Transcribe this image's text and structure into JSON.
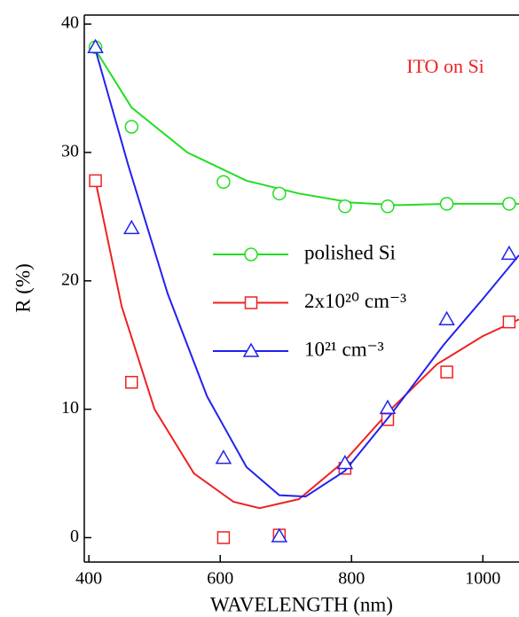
{
  "chart_data": {
    "type": "scatter",
    "annotation": "ITO on Si",
    "xlabel": "WAVELENGTH  (nm)",
    "ylabel": "R  (%)",
    "x": [
      410,
      465,
      605,
      690,
      790,
      855,
      945,
      1040
    ],
    "series": [
      {
        "name": "polished Si",
        "color": "#22dd22",
        "marker": "circle",
        "values": [
          38.2,
          32.0,
          27.7,
          26.8,
          25.8,
          25.8,
          26.0,
          26.0
        ],
        "fit_x": [
          410,
          465,
          550,
          640,
          720,
          800,
          870,
          950,
          1055
        ],
        "fit_values": [
          38,
          33.5,
          30,
          27.8,
          26.8,
          26.1,
          25.9,
          26,
          26
        ]
      },
      {
        "name": "2x10²⁰ cm⁻³",
        "color": "#ee2222",
        "marker": "square",
        "values": [
          27.8,
          12.1,
          0,
          0.2,
          5.4,
          9.2,
          12.9,
          16.8
        ],
        "fit_x": [
          410,
          450,
          500,
          560,
          620,
          660,
          720,
          790,
          860,
          930,
          1000,
          1055
        ],
        "fit_values": [
          27.8,
          18,
          10,
          5,
          2.8,
          2.3,
          3,
          6,
          10,
          13.5,
          15.7,
          17
        ]
      },
      {
        "name": "10²¹ cm⁻³",
        "color": "#2222ee",
        "marker": "triangle",
        "values": [
          38.2,
          24.1,
          6.2,
          0.1,
          5.8,
          10.1,
          17.0,
          22.1
        ],
        "fit_x": [
          410,
          460,
          520,
          580,
          640,
          690,
          730,
          790,
          860,
          940,
          1000,
          1055
        ],
        "fit_values": [
          38,
          29,
          19,
          11,
          5.5,
          3.3,
          3.2,
          5.2,
          9.6,
          15,
          18.6,
          22
        ]
      }
    ],
    "xlim": [
      393,
      1055
    ],
    "ylim": [
      -1.9,
      40.7
    ],
    "xticks": [
      400,
      600,
      800,
      1000
    ],
    "yticks": [
      0,
      10,
      20,
      30,
      40
    ],
    "grid": false
  }
}
